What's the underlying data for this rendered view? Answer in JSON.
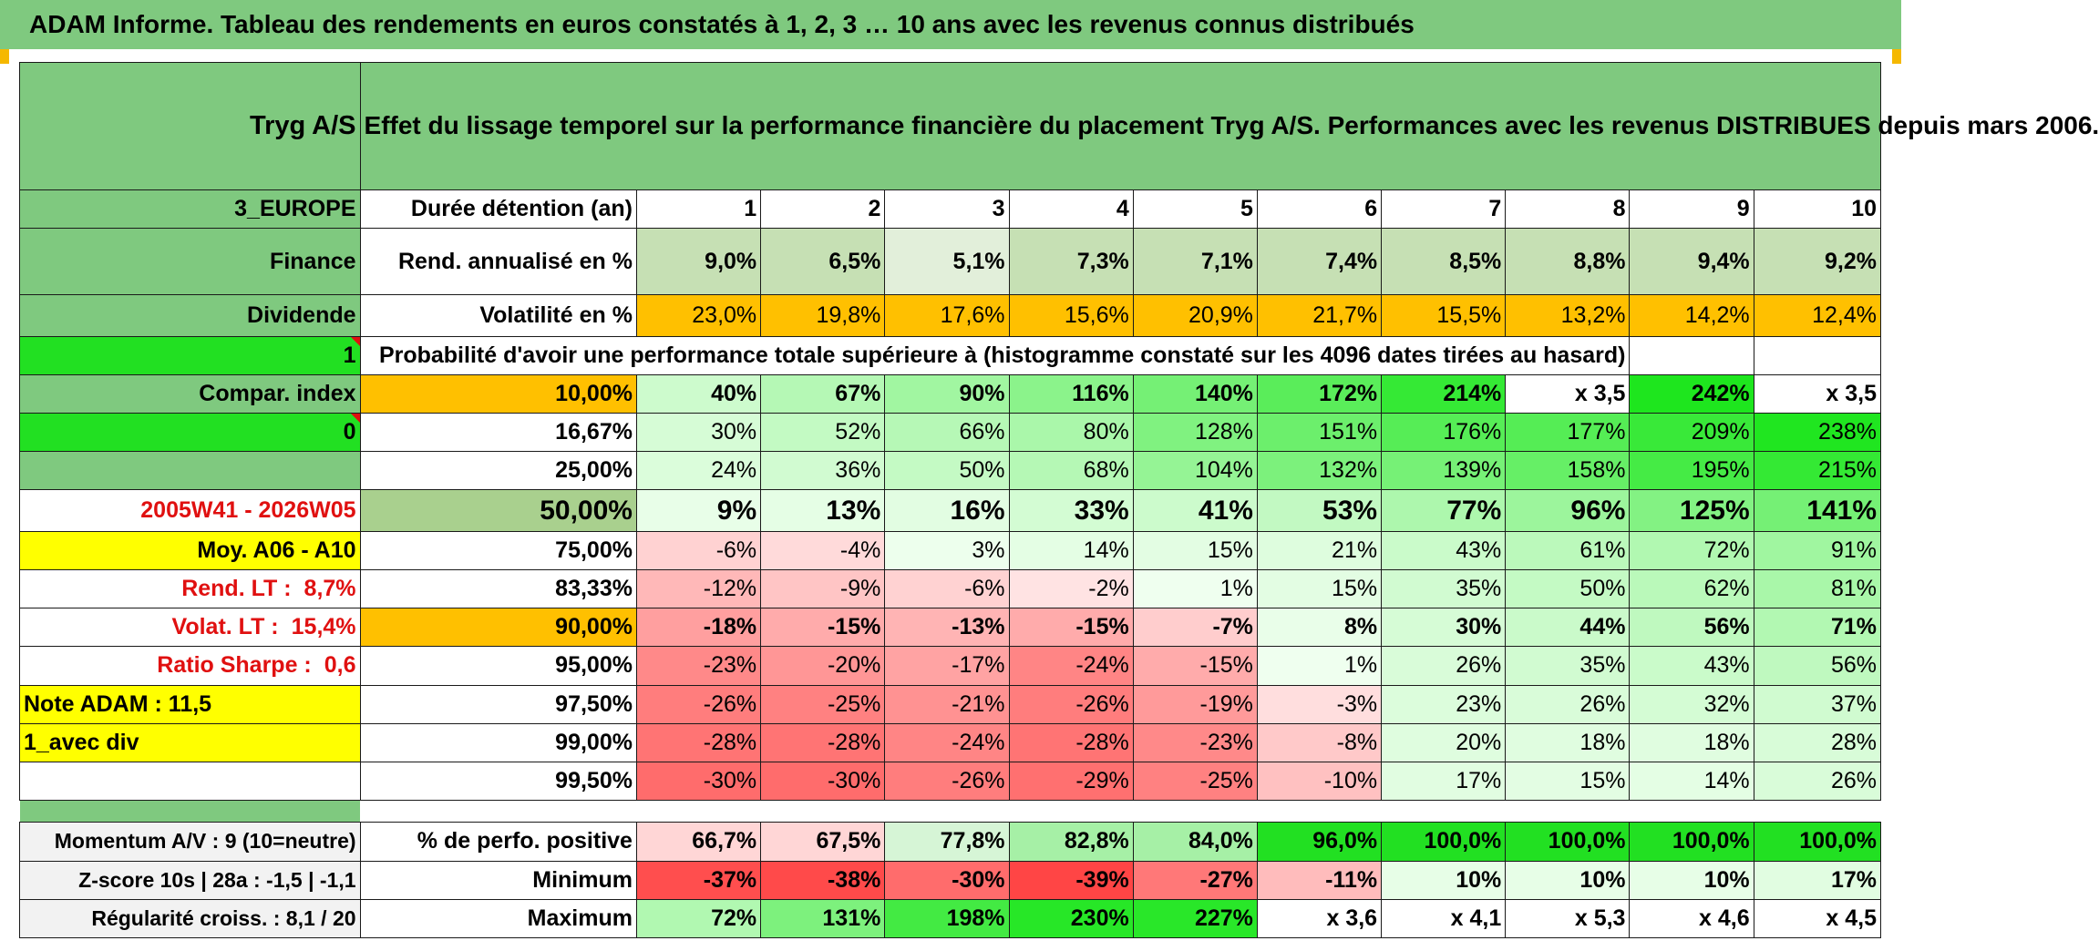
{
  "banner": {
    "title": "ADAM Informe. Tableau des rendements en euros constatés à 1, 2, 3 … 10 ans avec les revenus connus distribués"
  },
  "left": {
    "fund_name": "Tryg A/S",
    "region": "3_EUROPE",
    "sector": "Finance",
    "type": "Dividende",
    "val1": "1",
    "compar_index": "Compar. index",
    "val0": "0",
    "period": "2005W41 - 2026W05",
    "moy": "Moy. A06 - A10",
    "rend_lt_label": "Rend. LT :",
    "rend_lt_value": "8,7%",
    "volat_lt_label": "Volat. LT :",
    "volat_lt_value": "15,4%",
    "sharpe_label": "Ratio Sharpe :",
    "sharpe_value": "0,6",
    "note": "Note ADAM : 11,5",
    "div_mode": "1_avec div",
    "momentum": "Momentum A/V : 9 (10=neutre)",
    "zscore": "Z-score 10s | 28a : -1,5 | -1,1",
    "regularite": "Régularité croiss. : 8,1 / 20"
  },
  "header": {
    "description": "Effet du lissage temporel sur la performance financière du placement Tryg A/S. Performances avec les revenus DISTRIBUES depuis mars 2006.",
    "duration_label": "Durée détention (an)",
    "years": [
      "1",
      "2",
      "3",
      "4",
      "5",
      "6",
      "7",
      "8",
      "9",
      "10"
    ],
    "rend_label": "Rend. annualisé en %",
    "rend": [
      "9,0%",
      "6,5%",
      "5,1%",
      "7,3%",
      "7,1%",
      "7,4%",
      "8,5%",
      "8,8%",
      "9,4%",
      "9,2%"
    ],
    "vol_label": "Volatilité en %",
    "vol": [
      "23,0%",
      "19,8%",
      "17,6%",
      "15,6%",
      "20,9%",
      "21,7%",
      "15,5%",
      "13,2%",
      "14,2%",
      "12,4%"
    ],
    "prob_title": "Probabilité d'avoir une performance totale supérieure à (histogramme constaté sur les 4096 dates tirées au hasard)"
  },
  "prob_rows": [
    {
      "threshold": "10,00%",
      "values": [
        "40%",
        "67%",
        "90%",
        "116%",
        "140%",
        "172%",
        "214%",
        "x 3,5",
        "242%",
        "x 3,5"
      ]
    },
    {
      "threshold": "16,67%",
      "values": [
        "30%",
        "52%",
        "66%",
        "80%",
        "128%",
        "151%",
        "176%",
        "177%",
        "209%",
        "238%"
      ]
    },
    {
      "threshold": "25,00%",
      "values": [
        "24%",
        "36%",
        "50%",
        "68%",
        "104%",
        "132%",
        "139%",
        "158%",
        "195%",
        "215%"
      ]
    },
    {
      "threshold": "50,00%",
      "values": [
        "9%",
        "13%",
        "16%",
        "33%",
        "41%",
        "53%",
        "77%",
        "96%",
        "125%",
        "141%"
      ]
    },
    {
      "threshold": "75,00%",
      "values": [
        "-6%",
        "-4%",
        "3%",
        "14%",
        "15%",
        "21%",
        "43%",
        "61%",
        "72%",
        "91%"
      ]
    },
    {
      "threshold": "83,33%",
      "values": [
        "-12%",
        "-9%",
        "-6%",
        "-2%",
        "1%",
        "15%",
        "35%",
        "50%",
        "62%",
        "81%"
      ]
    },
    {
      "threshold": "90,00%",
      "values": [
        "-18%",
        "-15%",
        "-13%",
        "-15%",
        "-7%",
        "8%",
        "30%",
        "44%",
        "56%",
        "71%"
      ]
    },
    {
      "threshold": "95,00%",
      "values": [
        "-23%",
        "-20%",
        "-17%",
        "-24%",
        "-15%",
        "1%",
        "26%",
        "35%",
        "43%",
        "56%"
      ]
    },
    {
      "threshold": "97,50%",
      "values": [
        "-26%",
        "-25%",
        "-21%",
        "-26%",
        "-19%",
        "-3%",
        "23%",
        "26%",
        "32%",
        "37%"
      ]
    },
    {
      "threshold": "99,00%",
      "values": [
        "-28%",
        "-28%",
        "-24%",
        "-28%",
        "-23%",
        "-8%",
        "20%",
        "18%",
        "18%",
        "28%"
      ]
    },
    {
      "threshold": "99,50%",
      "values": [
        "-30%",
        "-30%",
        "-26%",
        "-29%",
        "-25%",
        "-10%",
        "17%",
        "15%",
        "14%",
        "26%"
      ]
    }
  ],
  "bottom": {
    "pos_label": "% de perfo. positive",
    "pos": [
      "66,7%",
      "67,5%",
      "77,8%",
      "82,8%",
      "84,0%",
      "96,0%",
      "100,0%",
      "100,0%",
      "100,0%",
      "100,0%"
    ],
    "min_label": "Minimum",
    "min": [
      "-37%",
      "-38%",
      "-30%",
      "-39%",
      "-27%",
      "-11%",
      "10%",
      "10%",
      "10%",
      "17%"
    ],
    "max_label": "Maximum",
    "max": [
      "72%",
      "131%",
      "198%",
      "230%",
      "227%",
      "x 3,6",
      "x 4,1",
      "x 5,3",
      "x 4,6",
      "x 4,5"
    ]
  },
  "colors": {
    "header_green": "#7fc97f",
    "bright_green": "#22e022",
    "yellow": "#ffff00",
    "orange": "#ffc000",
    "label_red": "#e01010"
  }
}
